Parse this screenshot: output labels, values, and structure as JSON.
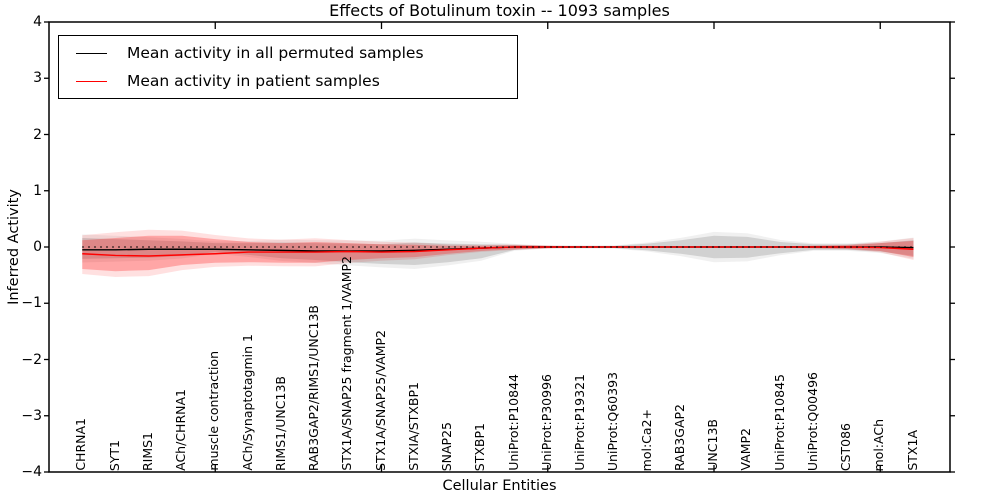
{
  "title": "Effects of Botulinum toxin -- 1093 samples",
  "xlabel": "Cellular Entities",
  "ylabel": "Inferred Activity",
  "legend": {
    "items": [
      {
        "label": "Mean activity in all permuted samples",
        "color": "#000000"
      },
      {
        "label": "Mean activity in patient samples",
        "color": "#ff0000"
      }
    ]
  },
  "chart_data": {
    "type": "line",
    "title": "Effects of Botulinum toxin -- 1093 samples",
    "xlabel": "Cellular Entities",
    "ylabel": "Inferred Activity",
    "ylim": [
      -4,
      4
    ],
    "ytick_labels": [
      "4",
      "3",
      "2",
      "1",
      "0",
      "−1",
      "−2",
      "−3",
      "−4"
    ],
    "ytick_values": [
      4,
      3,
      2,
      1,
      0,
      -1,
      -2,
      -3,
      -4
    ],
    "xticks_numeric": [
      5,
      10,
      15,
      20,
      25
    ],
    "grid": false,
    "legend_position": "upper left",
    "zero_line": {
      "value": 0,
      "style": "dotted",
      "color": "#000000"
    },
    "categories": [
      "CHRNA1",
      "SYT1",
      "RIMS1",
      "ACh/CHRNA1",
      "muscle contraction",
      "ACh/Synaptotagmin 1",
      "RIMS1/UNC13B",
      "RAB3GAP2/RIMS1/UNC13B",
      "STX1A/SNAP25 fragment 1/VAMP2",
      "STX1A/SNAP25/VAMP2",
      "STXIA/STXBP1",
      "SNAP25",
      "STXBP1",
      "UniProt:P10844",
      "UniProt:P30996",
      "UniProt:P19321",
      "UniProt:Q60393",
      "mol:Ca2+",
      "RAB3GAP2",
      "UNC13B",
      "VAMP2",
      "UniProt:P10845",
      "UniProt:Q00496",
      "CST086",
      "mol:ACh",
      "STX1A"
    ],
    "series": [
      {
        "name": "Mean activity in all permuted samples",
        "color": "#000000",
        "values": [
          -0.05,
          -0.05,
          -0.04,
          -0.04,
          -0.04,
          -0.05,
          -0.06,
          -0.07,
          -0.07,
          -0.07,
          -0.06,
          -0.04,
          -0.02,
          0,
          0,
          0,
          0,
          0,
          0,
          0,
          0,
          0,
          0,
          0,
          0,
          -0.01
        ]
      },
      {
        "name": "Mean activity in patient samples",
        "color": "#ff0000",
        "values": [
          -0.12,
          -0.15,
          -0.16,
          -0.14,
          -0.12,
          -0.09,
          -0.09,
          -0.09,
          -0.08,
          -0.09,
          -0.08,
          -0.05,
          -0.02,
          0,
          0,
          0,
          0,
          0,
          0,
          0,
          0,
          0,
          0,
          0,
          -0.01,
          -0.04
        ]
      }
    ],
    "bands": [
      {
        "name": "permuted-std-band",
        "color": "#000000",
        "alpha_inner": 0.13,
        "alpha_outer": 0.06,
        "upper": [
          0.16,
          0.14,
          0.12,
          0.1,
          0.07,
          0.07,
          0.08,
          0.07,
          0.06,
          0.05,
          0.08,
          0.06,
          0.05,
          0.04,
          0.02,
          0.02,
          0.02,
          0.06,
          0.12,
          0.2,
          0.18,
          0.09,
          0.05,
          0.05,
          0.07,
          0.12
        ],
        "lower": [
          -0.21,
          -0.2,
          -0.19,
          -0.16,
          -0.09,
          -0.14,
          -0.2,
          -0.23,
          -0.27,
          -0.3,
          -0.32,
          -0.27,
          -0.2,
          -0.05,
          -0.02,
          -0.02,
          -0.02,
          -0.06,
          -0.12,
          -0.2,
          -0.19,
          -0.11,
          -0.05,
          -0.05,
          -0.08,
          -0.16
        ]
      },
      {
        "name": "patient-std-band",
        "color": "#ff0000",
        "alpha_inner": 0.26,
        "alpha_outer": 0.12,
        "upper": [
          0.12,
          0.16,
          0.2,
          0.2,
          0.14,
          0.09,
          0.07,
          0.09,
          0.07,
          0.05,
          0.04,
          0.02,
          0.02,
          0.03,
          0.02,
          0.01,
          0.01,
          0.01,
          0.01,
          0.01,
          0.01,
          0.01,
          0.02,
          0.03,
          0.07,
          0.11
        ],
        "lower": [
          -0.39,
          -0.43,
          -0.41,
          -0.32,
          -0.28,
          -0.27,
          -0.28,
          -0.28,
          -0.23,
          -0.2,
          -0.18,
          -0.12,
          -0.07,
          -0.04,
          -0.02,
          -0.01,
          -0.01,
          -0.01,
          -0.01,
          -0.01,
          -0.01,
          -0.01,
          -0.02,
          -0.03,
          -0.07,
          -0.18
        ]
      }
    ],
    "band_outer_scale": 1.35
  }
}
